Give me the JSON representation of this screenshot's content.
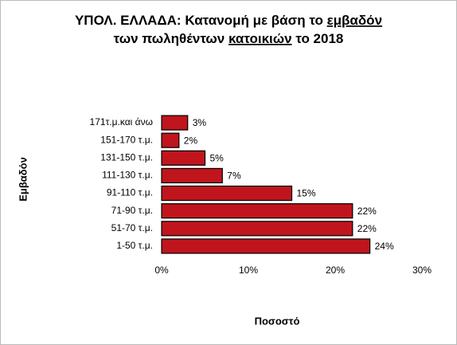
{
  "chart_data": {
    "type": "barh",
    "title_lines": [
      [
        "ΥΠΟΛ. ΕΛΛΑΔΑ:",
        "Κατανομή με βάση το",
        "εμβαδόν"
      ],
      [
        "των πωληθέντων",
        "κατοικιών",
        "το 2018"
      ]
    ],
    "categories": [
      "171τ.μ.και άνω",
      "151-170 τ.μ.",
      "131-150 τ.μ.",
      "111-130 τ.μ.",
      "91-110 τ.μ.",
      "71-90 τ.μ.",
      "51-70 τ.μ.",
      "1-50 τ.μ."
    ],
    "values": [
      3,
      2,
      5,
      7,
      15,
      22,
      22,
      24
    ],
    "value_labels": [
      "3%",
      "2%",
      "5%",
      "7%",
      "15%",
      "22%",
      "22%",
      "24%"
    ],
    "color": "#c0151d",
    "xlim": [
      0,
      30
    ],
    "xticks": [
      {
        "value": 0,
        "label": "0%"
      },
      {
        "value": 10,
        "label": "10%"
      },
      {
        "value": 20,
        "label": "20%"
      },
      {
        "value": 30,
        "label": "30%"
      }
    ],
    "xlabel": "Ποσοστό",
    "ylabel": "Εμβαδόν"
  }
}
